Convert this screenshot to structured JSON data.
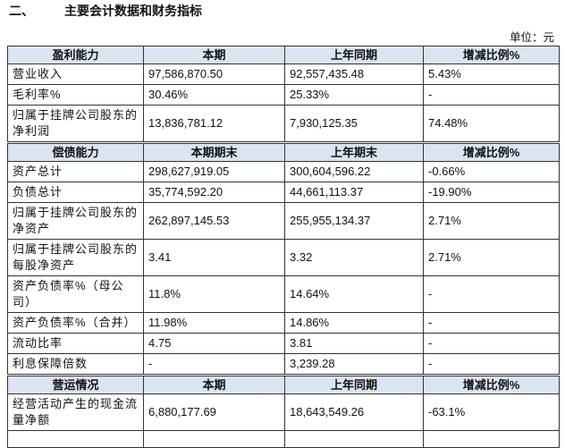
{
  "header": {
    "number": "二、",
    "title": "主要会计数据和财务指标",
    "unit": "单位：元"
  },
  "table": {
    "sections": [
      {
        "header": [
          "盈利能力",
          "本期",
          "上年同期",
          "增减比例%"
        ],
        "rows": [
          [
            "营业收入",
            "97,586,870.50",
            "92,557,435.48",
            "5.43%"
          ],
          [
            "毛利率%",
            "30.46%",
            "25.33%",
            "-"
          ],
          [
            "归属于挂牌公司股东的净利润",
            "13,836,781.12",
            "7,930,125.35",
            "74.48%"
          ]
        ]
      },
      {
        "header": [
          "偿债能力",
          "本期期末",
          "上年期末",
          "增减比例%"
        ],
        "rows": [
          [
            "资产总计",
            "298,627,919.05",
            "300,604,596.22",
            "-0.66%"
          ],
          [
            "负债总计",
            "35,774,592.20",
            "44,661,113.37",
            "-19.90%"
          ],
          [
            "归属于挂牌公司股东的净资产",
            "262,897,145.53",
            "255,955,134.37",
            "2.71%"
          ],
          [
            "归属于挂牌公司股东的每股净资产",
            "3.41",
            "3.32",
            "2.71%"
          ],
          [
            "资产负债率%（母公司）",
            "11.8%",
            "14.64%",
            "-"
          ],
          [
            "资产负债率%（合并）",
            "11.98%",
            "14.86%",
            "-"
          ],
          [
            "流动比率",
            "4.75",
            "3.81",
            "-"
          ],
          [
            "利息保障倍数",
            "-",
            "3,239.28",
            "-"
          ]
        ]
      },
      {
        "header": [
          "营运情况",
          "本期",
          "上年同期",
          "增减比例%"
        ],
        "rows": [
          [
            "经营活动产生的现金流量净额",
            "6,880,177.69",
            "18,643,549.26",
            "-63.1%"
          ]
        ]
      }
    ]
  }
}
